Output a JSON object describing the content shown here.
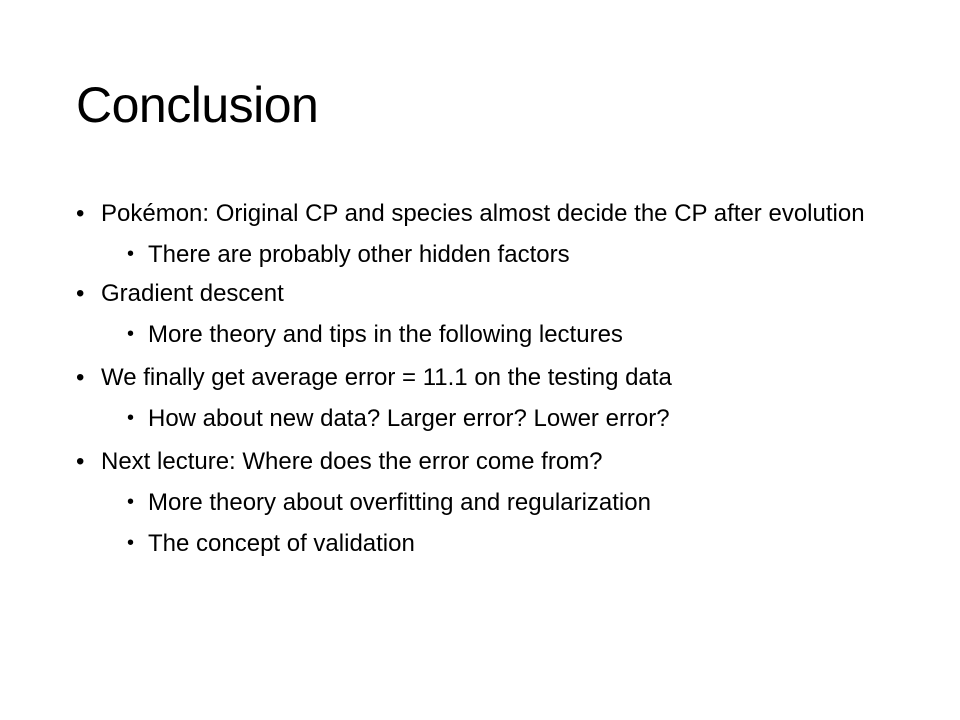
{
  "slide": {
    "title": "Conclusion",
    "bullet_glyph": "•",
    "items": [
      {
        "text": "Pokémon: Original CP and species almost decide the CP after evolution",
        "sub": [
          "There are probably other hidden factors"
        ]
      },
      {
        "text": "Gradient descent",
        "sub": [
          "More theory and tips in the following lectures"
        ]
      },
      {
        "text": "We finally get average error = 11.1 on the testing data",
        "sub": [
          "How about new data? Larger error? Lower error?"
        ]
      },
      {
        "text": "Next lecture: Where does the error come from?",
        "sub": [
          "More theory about overfitting and regularization",
          "The concept of validation"
        ]
      }
    ]
  }
}
